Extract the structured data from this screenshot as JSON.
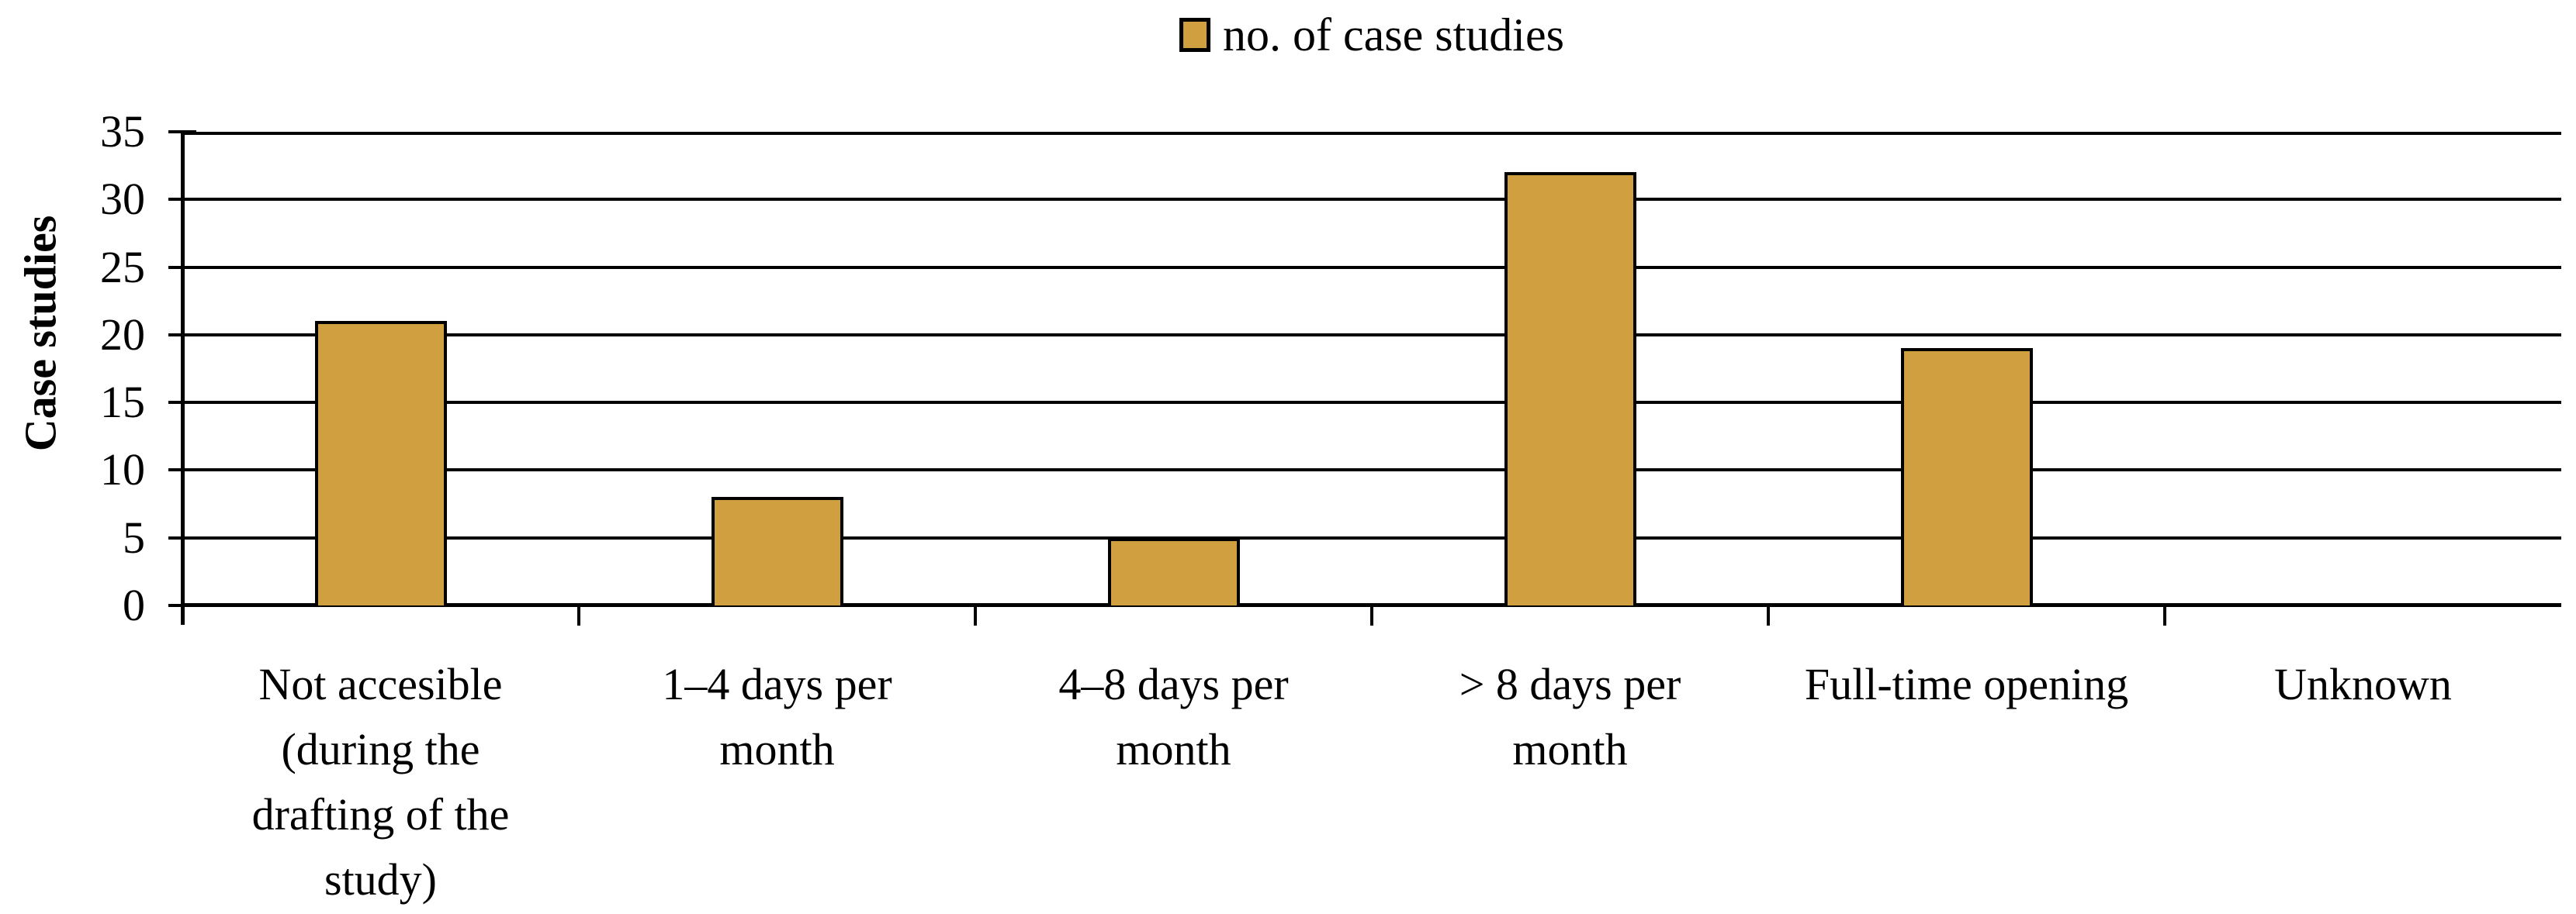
{
  "chart_data": {
    "type": "bar",
    "title": "",
    "legend": {
      "label": "no. of case studies",
      "position": "top"
    },
    "ylabel": "Case studies",
    "xlabel": "",
    "categories": [
      "Not accesible (during the drafting of the study)",
      "1–4 days per month",
      "4–8 days per month",
      "> 8 days per month",
      "Full-time opening",
      "Unknown"
    ],
    "values": [
      21,
      8,
      5,
      32,
      19,
      0
    ],
    "ylim": [
      0,
      35
    ],
    "yticks": [
      0,
      5,
      10,
      15,
      20,
      25,
      30,
      35
    ],
    "grid": true,
    "legend_entries": [
      "no. of case studies"
    ],
    "bar_color": "#D09F40",
    "bar_border_color": "#000000",
    "axis_color": "#000000",
    "background": "#FFFFFF"
  }
}
